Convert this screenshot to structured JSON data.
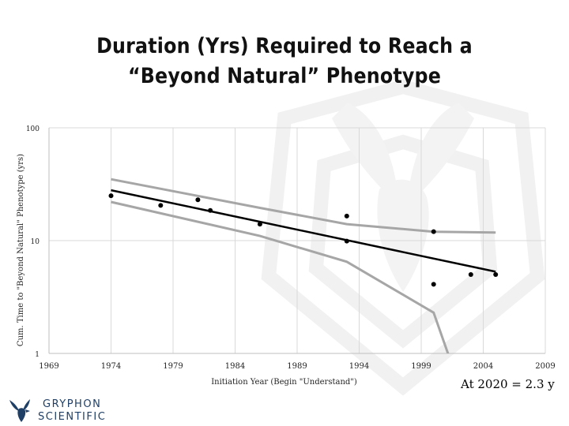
{
  "title_line1": "Duration (Yrs) Required to Reach a",
  "title_line2": "“Beyond Natural” Phenotype",
  "footnote": "At 2020 = 2.3 y",
  "logo": {
    "line1": "GRYPHON",
    "line2": "SCIENTIFIC",
    "icon": "gryphon-icon"
  },
  "colors": {
    "points": "#000000",
    "fit": "#000000",
    "ci": "#a6a6a6",
    "grid": "#d9d9d9",
    "logo": "#1f3f66"
  },
  "chart_data": {
    "type": "scatter",
    "title": "Duration (Yrs) Required to Reach a “Beyond Natural” Phenotype",
    "xlabel": "Initiation Year (Begin \"Understand\")",
    "ylabel": "Cum. Time to \"Beyond Natural\" Phenotype (yrs)",
    "xlim": [
      1969,
      2009
    ],
    "ylim": [
      1,
      100
    ],
    "yscale": "log",
    "grid": true,
    "xticks": [
      1969,
      1974,
      1979,
      1984,
      1989,
      1994,
      1999,
      2004,
      2009
    ],
    "yticks": [
      1,
      10,
      100
    ],
    "xtick_labels": [
      "1969",
      "1974",
      "1979",
      "1984",
      "1989",
      "1994",
      "1999",
      "2004",
      "2009"
    ],
    "ytick_labels": [
      "1",
      "10",
      "100"
    ],
    "points": [
      {
        "x": 1974,
        "y": 25
      },
      {
        "x": 1978,
        "y": 20.5
      },
      {
        "x": 1981,
        "y": 23
      },
      {
        "x": 1982,
        "y": 18.5
      },
      {
        "x": 1986,
        "y": 14
      },
      {
        "x": 1993,
        "y": 16.5
      },
      {
        "x": 1993,
        "y": 9.9
      },
      {
        "x": 2000,
        "y": 12
      },
      {
        "x": 2000,
        "y": 4.1
      },
      {
        "x": 2003,
        "y": 5
      },
      {
        "x": 2005,
        "y": 5
      }
    ],
    "fit_line": [
      {
        "x": 1974,
        "y": 28
      },
      {
        "x": 2005,
        "y": 5.3
      }
    ],
    "ci_upper": [
      {
        "x": 1974,
        "y": 35
      },
      {
        "x": 1986,
        "y": 19.5
      },
      {
        "x": 1993,
        "y": 14
      },
      {
        "x": 2000,
        "y": 12
      },
      {
        "x": 2005,
        "y": 11.8
      }
    ],
    "ci_lower": [
      {
        "x": 1974,
        "y": 22
      },
      {
        "x": 1986,
        "y": 11
      },
      {
        "x": 1993,
        "y": 6.5
      },
      {
        "x": 2000,
        "y": 2.3
      },
      {
        "x": 2001.3,
        "y": 0.9
      }
    ]
  }
}
